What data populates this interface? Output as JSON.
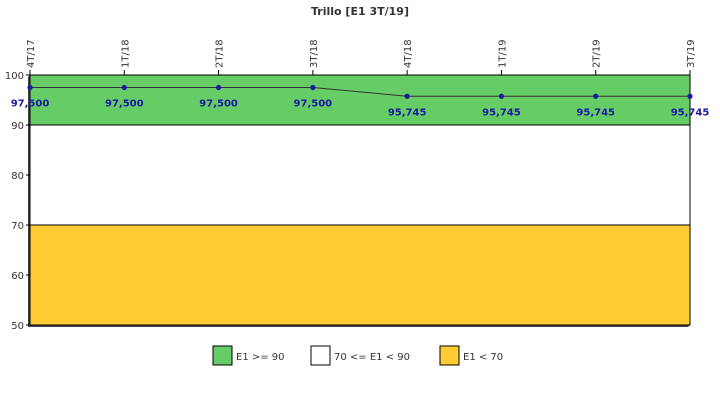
{
  "chart_data": {
    "type": "line",
    "title": "Trillo [E1 3T/19]",
    "xlabel": "",
    "ylabel": "",
    "categories": [
      "4T/17",
      "1T/18",
      "2T/18",
      "3T/18",
      "4T/18",
      "1T/19",
      "2T/19",
      "3T/19"
    ],
    "series": [
      {
        "values": [
          97.5,
          97.5,
          97.5,
          97.5,
          95.745,
          95.745,
          95.745,
          95.745
        ],
        "labels": [
          "97,500",
          "97,500",
          "97,500",
          "97,500",
          "95,745",
          "95,745",
          "95,745",
          "95,745"
        ],
        "color": "#1a1aa0"
      }
    ],
    "ylim": [
      50,
      100
    ],
    "yticks": [
      50,
      60,
      70,
      80,
      90,
      100
    ],
    "bands": [
      {
        "from": 90,
        "to": 100,
        "color": "#66cc66",
        "legend": "E1 >= 90"
      },
      {
        "from": 70,
        "to": 90,
        "color": "#ffffff",
        "legend": "70 <= E1 < 90"
      },
      {
        "from": 50,
        "to": 70,
        "color": "#ffcc33",
        "legend": "E1 < 70"
      }
    ],
    "grid": false,
    "legend_position": "bottom"
  }
}
